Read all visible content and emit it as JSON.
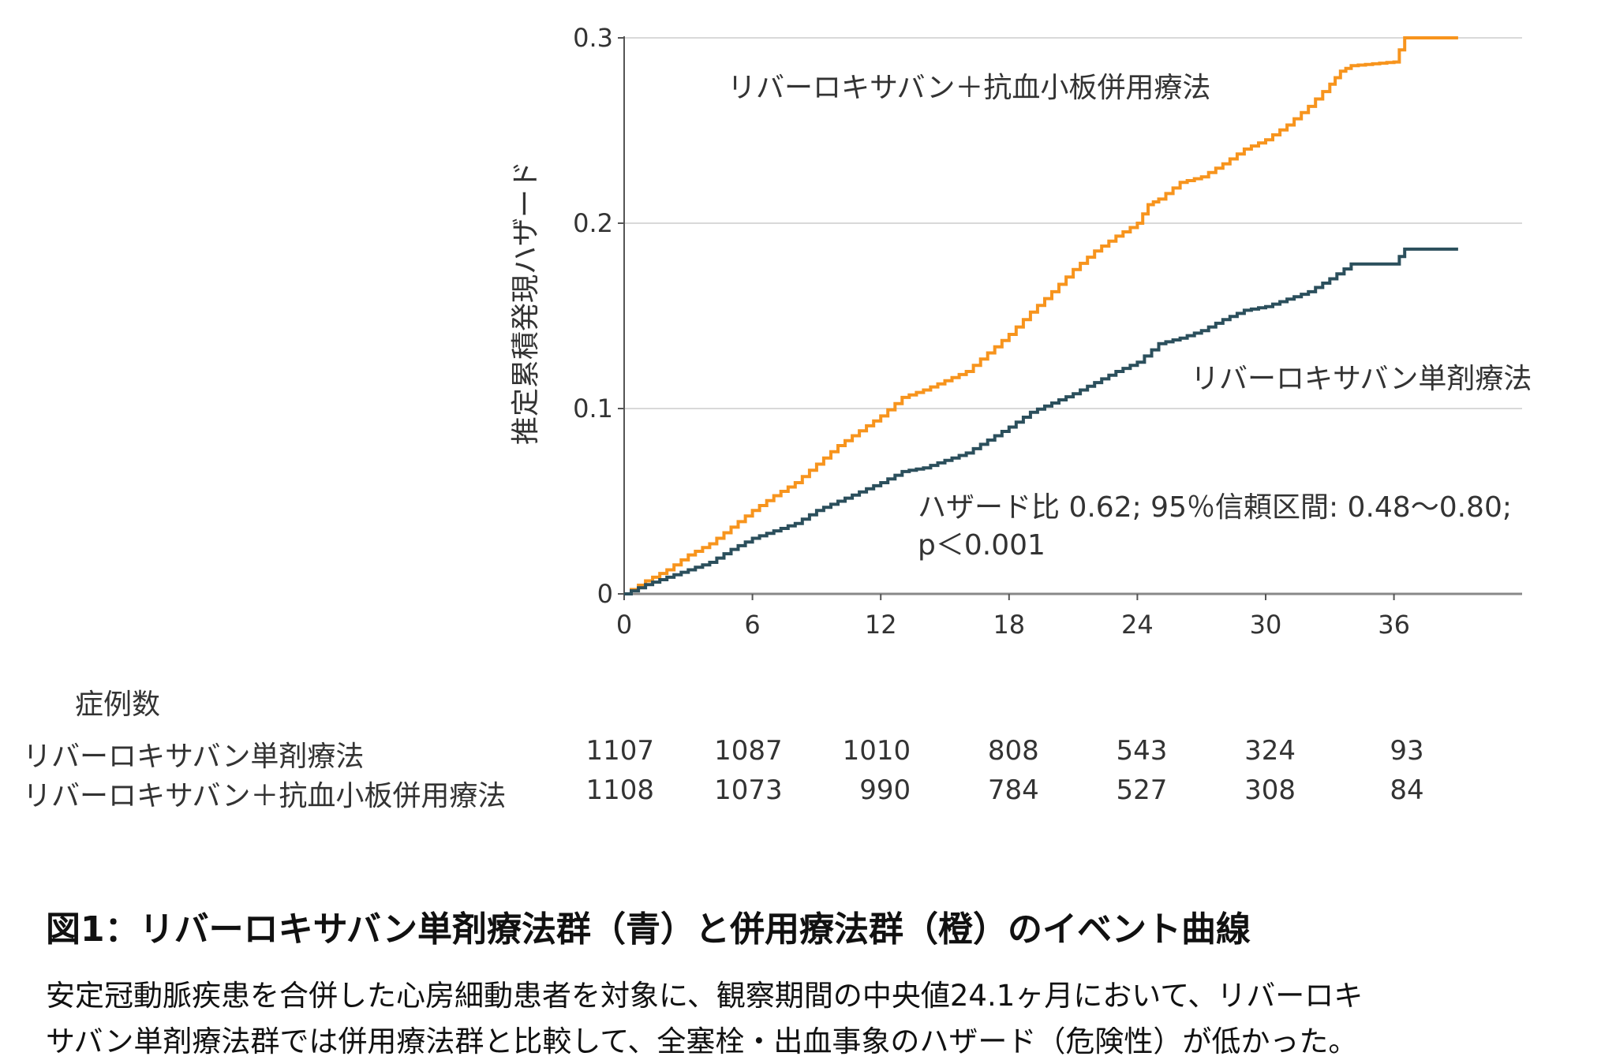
{
  "chart_data": {
    "type": "line",
    "step": true,
    "ylabel": "推定累積発現ハザード",
    "xlabel": "",
    "xlim": [
      0,
      39
    ],
    "ylim": [
      0,
      0.3
    ],
    "x_ticks": [
      "0",
      "6",
      "12",
      "18",
      "24",
      "30",
      "36"
    ],
    "x_tick_values": [
      0,
      6,
      12,
      18,
      24,
      30,
      36
    ],
    "y_ticks": [
      "0",
      "0.1",
      "0.2",
      "0.3"
    ],
    "y_tick_values": [
      0,
      0.1,
      0.2,
      0.3
    ],
    "grid": "horizontal",
    "series": [
      {
        "name": "リバーロキサバン＋抗血小板併用療法",
        "color": "#f7941d",
        "points": [
          [
            0,
            0
          ],
          [
            1,
            0.007
          ],
          [
            2,
            0.013
          ],
          [
            3,
            0.021
          ],
          [
            4,
            0.027
          ],
          [
            5,
            0.036
          ],
          [
            6,
            0.045
          ],
          [
            7,
            0.053
          ],
          [
            8,
            0.06
          ],
          [
            9,
            0.07
          ],
          [
            10,
            0.08
          ],
          [
            11,
            0.088
          ],
          [
            12,
            0.096
          ],
          [
            13,
            0.106
          ],
          [
            14,
            0.11
          ],
          [
            15,
            0.115
          ],
          [
            16,
            0.12
          ],
          [
            17,
            0.13
          ],
          [
            18,
            0.14
          ],
          [
            19,
            0.152
          ],
          [
            20,
            0.163
          ],
          [
            21,
            0.175
          ],
          [
            22,
            0.185
          ],
          [
            23,
            0.193
          ],
          [
            24,
            0.2
          ],
          [
            24.5,
            0.21
          ],
          [
            25,
            0.213
          ],
          [
            26,
            0.222
          ],
          [
            27,
            0.225
          ],
          [
            28,
            0.232
          ],
          [
            29,
            0.24
          ],
          [
            30,
            0.245
          ],
          [
            31,
            0.253
          ],
          [
            32,
            0.263
          ],
          [
            33,
            0.275
          ],
          [
            33.5,
            0.282
          ],
          [
            34,
            0.285
          ],
          [
            36,
            0.287
          ],
          [
            36.5,
            0.3
          ],
          [
            39,
            0.3
          ]
        ]
      },
      {
        "name": "リバーロキサバン単剤療法",
        "color": "#2b4f5c",
        "points": [
          [
            0,
            0
          ],
          [
            1,
            0.005
          ],
          [
            2,
            0.009
          ],
          [
            3,
            0.013
          ],
          [
            4,
            0.017
          ],
          [
            5,
            0.024
          ],
          [
            6,
            0.03
          ],
          [
            7,
            0.034
          ],
          [
            8,
            0.038
          ],
          [
            9,
            0.045
          ],
          [
            10,
            0.05
          ],
          [
            11,
            0.055
          ],
          [
            12,
            0.06
          ],
          [
            13,
            0.066
          ],
          [
            14,
            0.068
          ],
          [
            15,
            0.072
          ],
          [
            16,
            0.076
          ],
          [
            17,
            0.083
          ],
          [
            18,
            0.09
          ],
          [
            19,
            0.098
          ],
          [
            20,
            0.103
          ],
          [
            21,
            0.108
          ],
          [
            22,
            0.114
          ],
          [
            23,
            0.12
          ],
          [
            24,
            0.125
          ],
          [
            25,
            0.135
          ],
          [
            26,
            0.138
          ],
          [
            27,
            0.142
          ],
          [
            28,
            0.148
          ],
          [
            29,
            0.153
          ],
          [
            30,
            0.155
          ],
          [
            31,
            0.159
          ],
          [
            32,
            0.163
          ],
          [
            33,
            0.17
          ],
          [
            34,
            0.178
          ],
          [
            36,
            0.178
          ],
          [
            36.5,
            0.186
          ],
          [
            39,
            0.186
          ]
        ]
      }
    ],
    "annotation": [
      "ハザード比 0.62; 95％信頼区間: 0.48〜0.80;",
      "p＜0.001"
    ]
  },
  "risk_table": {
    "header": "症例数",
    "rows": [
      {
        "label": "リバーロキサバン単剤療法",
        "values": [
          "1107",
          "1087",
          "1010",
          "808",
          "543",
          "324",
          "93"
        ]
      },
      {
        "label": "リバーロキサバン＋抗血小板併用療法",
        "values": [
          "1108",
          "1073",
          "990",
          "784",
          "527",
          "308",
          "84"
        ]
      }
    ]
  },
  "caption": {
    "title": "図1：リバーロキサバン単剤療法群（青）と併用療法群（橙）のイベント曲線",
    "body_line1": "安定冠動脈疾患を合併した心房細動患者を対象に、観察期間の中央値24.1ヶ月において、リバーロキ",
    "body_line2": "サバン単剤療法群では併用療法群と比較して、全塞栓・出血事象のハザード（危険性）が低かった。"
  }
}
